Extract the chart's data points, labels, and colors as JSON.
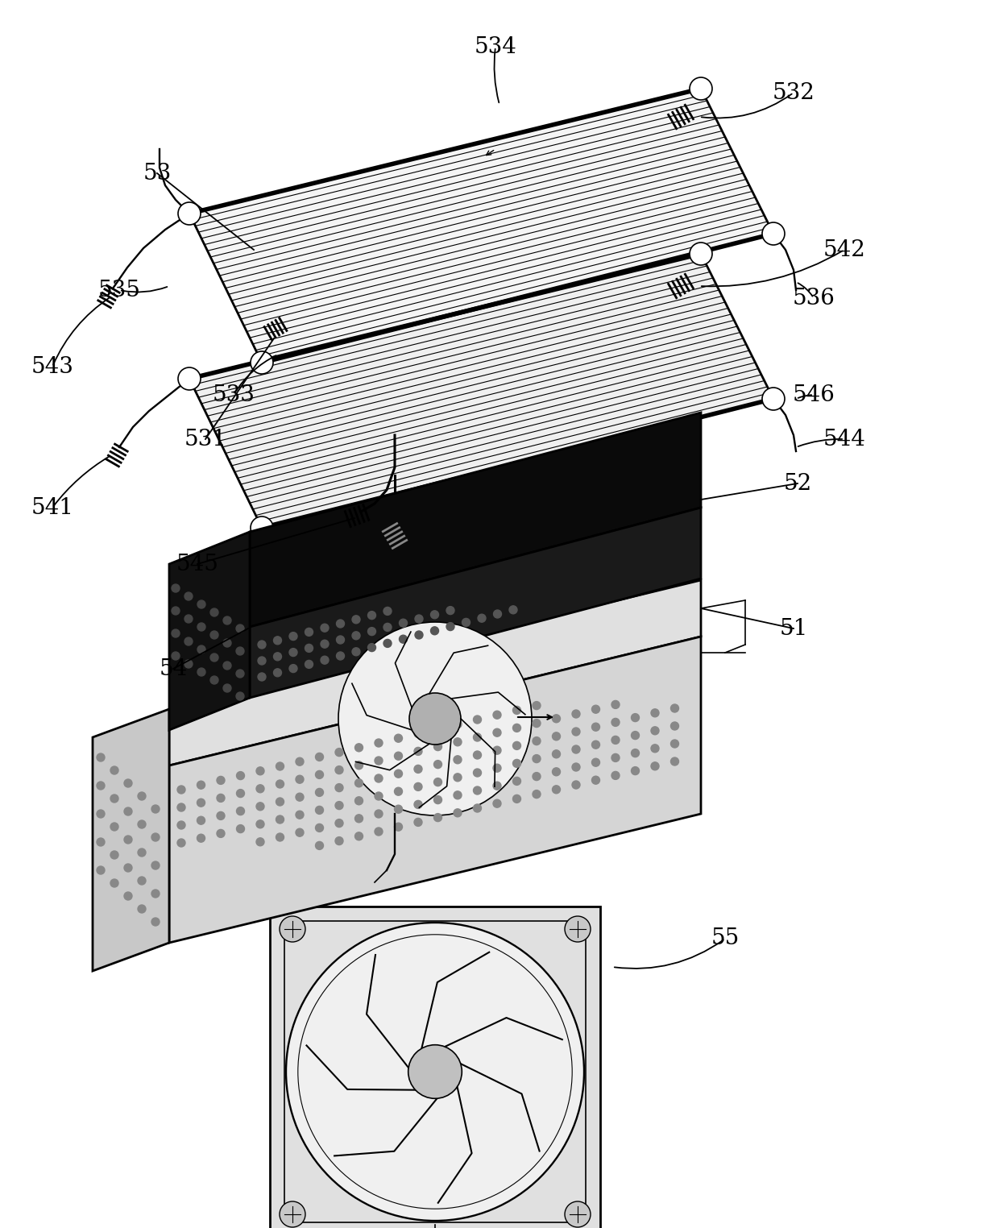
{
  "bg_color": "#ffffff",
  "line_color": "#000000",
  "figsize": [
    12.4,
    15.24
  ],
  "dpi": 100,
  "font_size": 20,
  "lw_main": 1.2,
  "lw_thick": 2.0
}
